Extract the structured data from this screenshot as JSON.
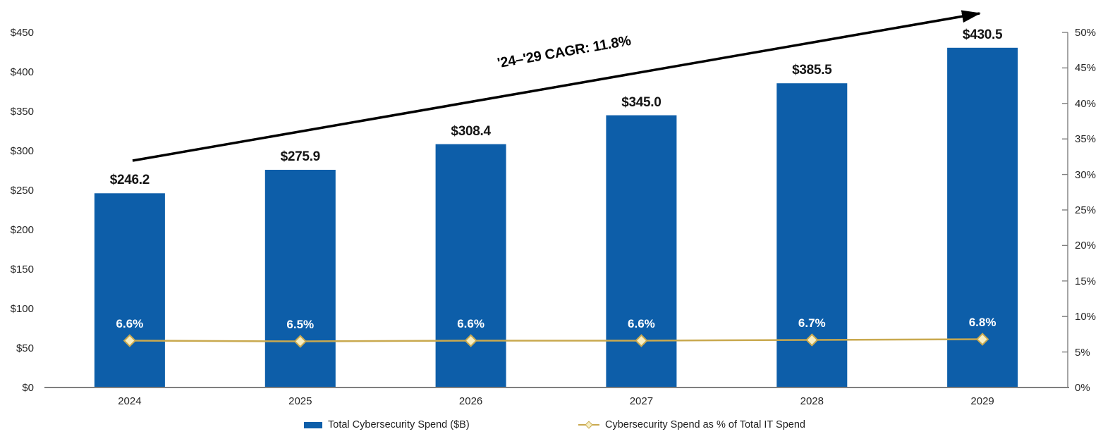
{
  "chart_data": {
    "type": "combo",
    "categories": [
      "2024",
      "2025",
      "2026",
      "2027",
      "2028",
      "2029"
    ],
    "series": [
      {
        "name": "Total Cybersecurity Spend ($B)",
        "chart_type": "bar",
        "axis": "left",
        "values": [
          246.2,
          275.9,
          308.4,
          345.0,
          385.5,
          430.5
        ],
        "value_labels": [
          "$246.2",
          "$275.9",
          "$308.4",
          "$345.0",
          "$385.5",
          "$430.5"
        ],
        "color": "#0D5EA9"
      },
      {
        "name": "Cybersecurity Spend as % of Total IT Spend",
        "chart_type": "line",
        "axis": "right",
        "values": [
          6.6,
          6.5,
          6.6,
          6.6,
          6.7,
          6.8
        ],
        "value_labels": [
          "6.6%",
          "6.5%",
          "6.6%",
          "6.6%",
          "6.7%",
          "6.8%"
        ],
        "color": "#C9A94F",
        "marker": "diamond",
        "marker_fill": "#F7EFC4"
      }
    ],
    "left_axis": {
      "min": 0,
      "max": 450,
      "step": 50,
      "tick_labels": [
        "$0",
        "$50",
        "$100",
        "$150",
        "$200",
        "$250",
        "$300",
        "$350",
        "$400",
        "$450"
      ]
    },
    "right_axis": {
      "min": 0,
      "max": 50,
      "step": 5,
      "tick_labels": [
        "0%",
        "5%",
        "10%",
        "15%",
        "20%",
        "25%",
        "30%",
        "35%",
        "40%",
        "45%",
        "50%"
      ]
    },
    "annotation": {
      "label": "'24–'29 CAGR: 11.8%"
    },
    "legend_position": "bottom",
    "grid": false
  },
  "legend": {
    "bar_label": "Total Cybersecurity Spend ($B)",
    "line_label": "Cybersecurity Spend as % of Total IT Spend"
  },
  "colors": {
    "bar": "#0D5EA9",
    "line": "#C9A94F",
    "marker_fill": "#F7EFC4",
    "marker_stroke": "#C9A94F",
    "axis_line": "#7F7F7F",
    "text": "#1F1F1F",
    "bar_pct_label": "#FFFFFF",
    "arrow": "#000000"
  }
}
